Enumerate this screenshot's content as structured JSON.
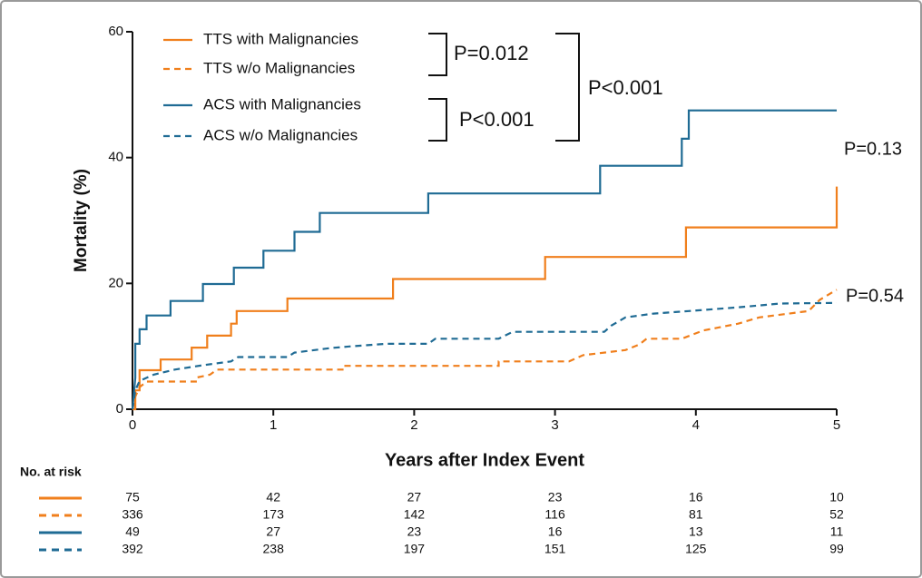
{
  "chart_data": {
    "type": "line",
    "y_label": "Mortality (%)",
    "x_label": "Years after Index Event",
    "xlim": [
      0,
      5
    ],
    "xticks": [
      0,
      1,
      2,
      3,
      4,
      5
    ],
    "ylim": [
      0,
      60
    ],
    "yticks": [
      0,
      20,
      40,
      60
    ],
    "series": [
      {
        "name": "TTS with Malignancies",
        "color": "#f07f1c",
        "dashed": false,
        "x": [
          0,
          0.02,
          0.02,
          0.05,
          0.05,
          0.2,
          0.2,
          0.42,
          0.42,
          0.53,
          0.53,
          0.7,
          0.7,
          0.74,
          0.74,
          1.1,
          1.1,
          1.85,
          1.85,
          2.93,
          2.93,
          3.93,
          3.93,
          5,
          5
        ],
        "values": [
          0,
          0,
          3,
          3,
          6.2,
          6.2,
          7.9,
          7.9,
          9.8,
          9.8,
          11.7,
          11.7,
          13.6,
          13.6,
          15.6,
          15.6,
          17.6,
          17.6,
          20.7,
          20.7,
          24.2,
          24.2,
          28.9,
          28.9,
          35.4
        ]
      },
      {
        "name": "TTS w/o Malignancies",
        "color": "#f07f1c",
        "dashed": true,
        "x": [
          0,
          0.02,
          0.05,
          0.1,
          0.45,
          0.45,
          0.55,
          0.6,
          1.5,
          1.5,
          2.6,
          2.6,
          3.1,
          3.2,
          3.5,
          3.6,
          3.65,
          3.9,
          4.05,
          4.3,
          4.45,
          4.8,
          4.88,
          5
        ],
        "values": [
          0,
          2,
          3.5,
          4.4,
          4.4,
          5,
          5.5,
          6.3,
          6.3,
          6.9,
          6.9,
          7.6,
          7.6,
          8.6,
          9.4,
          10.3,
          11.2,
          11.2,
          12.5,
          13.6,
          14.6,
          15.6,
          17.4,
          19
        ]
      },
      {
        "name": "ACS with Malignancies",
        "color": "#1f6b94",
        "dashed": false,
        "x": [
          0,
          0.02,
          0.02,
          0.05,
          0.05,
          0.1,
          0.1,
          0.27,
          0.27,
          0.5,
          0.5,
          0.72,
          0.72,
          0.93,
          0.93,
          1.15,
          1.15,
          1.33,
          1.33,
          2.1,
          2.1,
          3.32,
          3.32,
          3.9,
          3.9,
          3.95,
          3.95,
          5
        ],
        "values": [
          0,
          5,
          10.4,
          10.4,
          12.7,
          12.7,
          14.9,
          14.9,
          17.2,
          17.2,
          19.9,
          19.9,
          22.5,
          22.5,
          25.2,
          25.2,
          28.2,
          28.2,
          31.2,
          31.2,
          34.3,
          34.3,
          38.7,
          38.7,
          43,
          43,
          47.5,
          47.5
        ]
      },
      {
        "name": "ACS w/o Malignancies",
        "color": "#1f6b94",
        "dashed": true,
        "x": [
          0,
          0.02,
          0.05,
          0.15,
          0.3,
          0.5,
          0.7,
          0.75,
          1.1,
          1.15,
          1.4,
          1.55,
          1.8,
          2.1,
          2.15,
          2.6,
          2.7,
          3.35,
          3.4,
          3.5,
          3.7,
          3.95,
          4.3,
          4.6,
          5
        ],
        "values": [
          0,
          3,
          4.5,
          5.5,
          6.3,
          7,
          7.6,
          8.3,
          8.3,
          9,
          9.7,
          10,
          10.4,
          10.4,
          11.2,
          11.2,
          12.3,
          12.3,
          13.3,
          14.6,
          15.2,
          15.6,
          16.2,
          16.8,
          16.9
        ]
      }
    ],
    "annotations": [
      "P=0.012",
      "P<0.001",
      "P<0.001",
      "P=0.13",
      "P=0.54"
    ],
    "risk_table": {
      "title": "No. at risk",
      "rows": [
        [
          75,
          42,
          27,
          23,
          16,
          10
        ],
        [
          336,
          173,
          142,
          116,
          81,
          52
        ],
        [
          49,
          27,
          23,
          16,
          13,
          11
        ],
        [
          392,
          238,
          197,
          151,
          125,
          99
        ]
      ]
    }
  }
}
